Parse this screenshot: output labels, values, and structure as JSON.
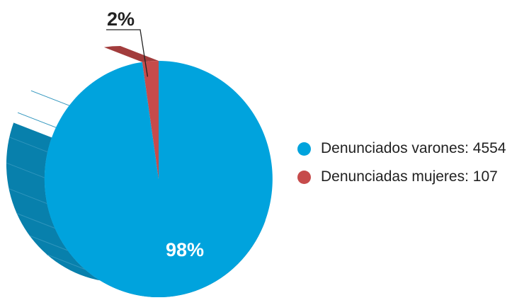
{
  "chart_data": {
    "type": "pie",
    "slices": [
      {
        "label": "Denunciados varones: 4554",
        "value": 4554,
        "percent_label": "98%",
        "color": "#00a3dd"
      },
      {
        "label": "Denunciadas mujeres: 107",
        "value": 107,
        "percent_label": "2%",
        "color": "#c64b4b"
      }
    ],
    "legend_position": "right",
    "style": "3d-tilted"
  },
  "colors": {
    "side": "#0880ac",
    "side_line": "#2f95bd",
    "red_side": "#a23c3c",
    "callout": "#222222"
  }
}
